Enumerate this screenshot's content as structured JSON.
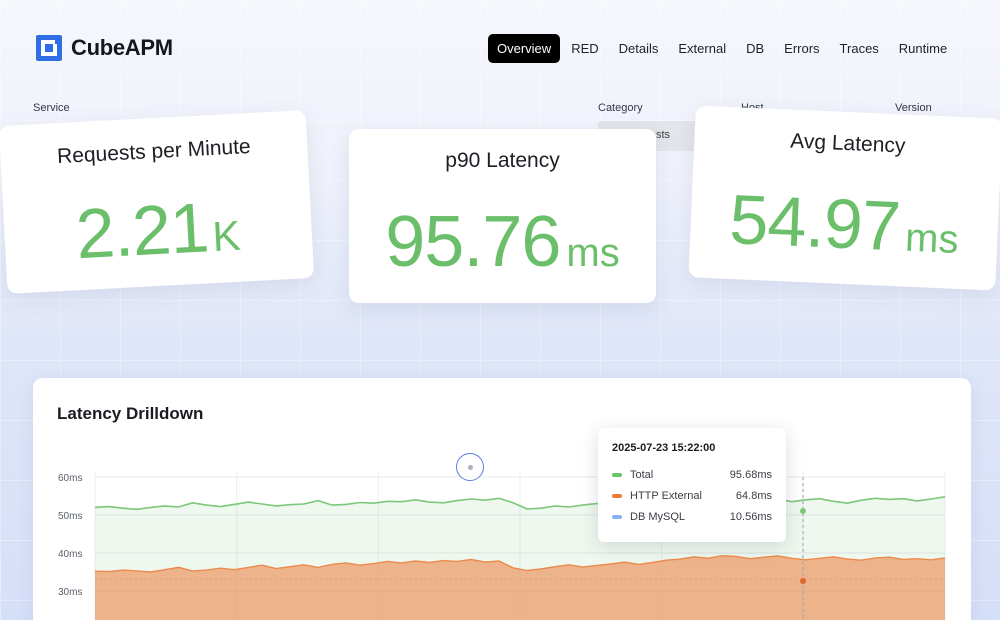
{
  "app": {
    "name": "CubeAPM"
  },
  "nav": [
    {
      "label": "Overview",
      "active": true
    },
    {
      "label": "RED"
    },
    {
      "label": "Details"
    },
    {
      "label": "External"
    },
    {
      "label": "DB"
    },
    {
      "label": "Errors"
    },
    {
      "label": "Traces"
    },
    {
      "label": "Runtime"
    }
  ],
  "filters": {
    "service_label": "Service",
    "category_label": "Category",
    "category_value": "sts",
    "host_label": "Host",
    "version_label": "Version"
  },
  "metrics": [
    {
      "title": "Requests per Minute",
      "value": "2.21",
      "unit": "K"
    },
    {
      "title": "p90 Latency",
      "value": "95.76",
      "unit": "ms"
    },
    {
      "title": "Avg Latency",
      "value": "54.97",
      "unit": "ms"
    }
  ],
  "colors": {
    "accent_green": "#6bbf6a",
    "brand_blue": "#2f6fe6",
    "series_total": "#7cc77a",
    "series_http": "#ec8a4d",
    "series_db": "#7fa6ee"
  },
  "chart_panel": {
    "title": "Latency Drilldown"
  },
  "tooltip": {
    "timestamp": "2025-07-23 15:22:00",
    "rows": [
      {
        "name": "Total",
        "value": "95.68ms",
        "color": "#6cc36a"
      },
      {
        "name": "HTTP External",
        "value": "64.8ms",
        "color": "#ef7a32"
      },
      {
        "name": "DB MySQL",
        "value": "10.56ms",
        "color": "#8bb0f2"
      }
    ]
  },
  "chart_data": {
    "type": "area",
    "title": "Latency Drilldown",
    "yticks": [
      "60ms",
      "50ms",
      "40ms",
      "30ms"
    ],
    "ylim": [
      20,
      60
    ],
    "grid": true,
    "series": [
      {
        "name": "Total",
        "values": [
          52,
          52.2,
          51.8,
          51.5,
          52,
          52.4,
          52.1,
          53.2,
          52.6,
          52.2,
          52.8,
          53.4,
          52.9,
          52.4,
          52.7,
          52.9,
          53.8,
          52.6,
          52.8,
          53.3,
          53.1,
          53.6,
          53.5,
          54,
          53.4,
          53.2,
          53.8,
          54.2,
          53.9,
          54.4,
          53.2,
          51.6,
          51.8,
          52.4,
          52.1,
          52.6,
          53,
          52.5,
          52.9,
          53.3,
          52.6,
          52.2,
          52.8,
          53.4,
          52.8,
          53.4,
          54.1,
          53.2,
          53.8,
          54.2,
          53.5,
          54,
          54.3,
          53.6,
          53.1,
          53.9,
          54.4,
          54.1,
          54.3,
          53.7,
          54.2,
          54.8
        ]
      },
      {
        "name": "HTTP External",
        "values": [
          35.2,
          35.1,
          35.5,
          35.3,
          35,
          35.6,
          36.2,
          35.3,
          35.5,
          36,
          35.6,
          36.2,
          36.8,
          35.9,
          36.4,
          36.9,
          36.2,
          37,
          37.4,
          36.8,
          37.2,
          37.8,
          37.4,
          37.9,
          37.5,
          38,
          37.8,
          38.3,
          37.6,
          37.9,
          36.1,
          35.4,
          35.8,
          36.4,
          36.9,
          36.3,
          36.7,
          37.1,
          37.6,
          37,
          37.5,
          38.1,
          38.4,
          39,
          38.6,
          39.3,
          39.1,
          38.5,
          38.9,
          39.2,
          38.6,
          38.2,
          38.6,
          39,
          38.4,
          38.1,
          38.7,
          38.9,
          38.3,
          38.5,
          38.2,
          38.7
        ]
      }
    ],
    "hover_time": "2025-07-23 15:22:00"
  }
}
